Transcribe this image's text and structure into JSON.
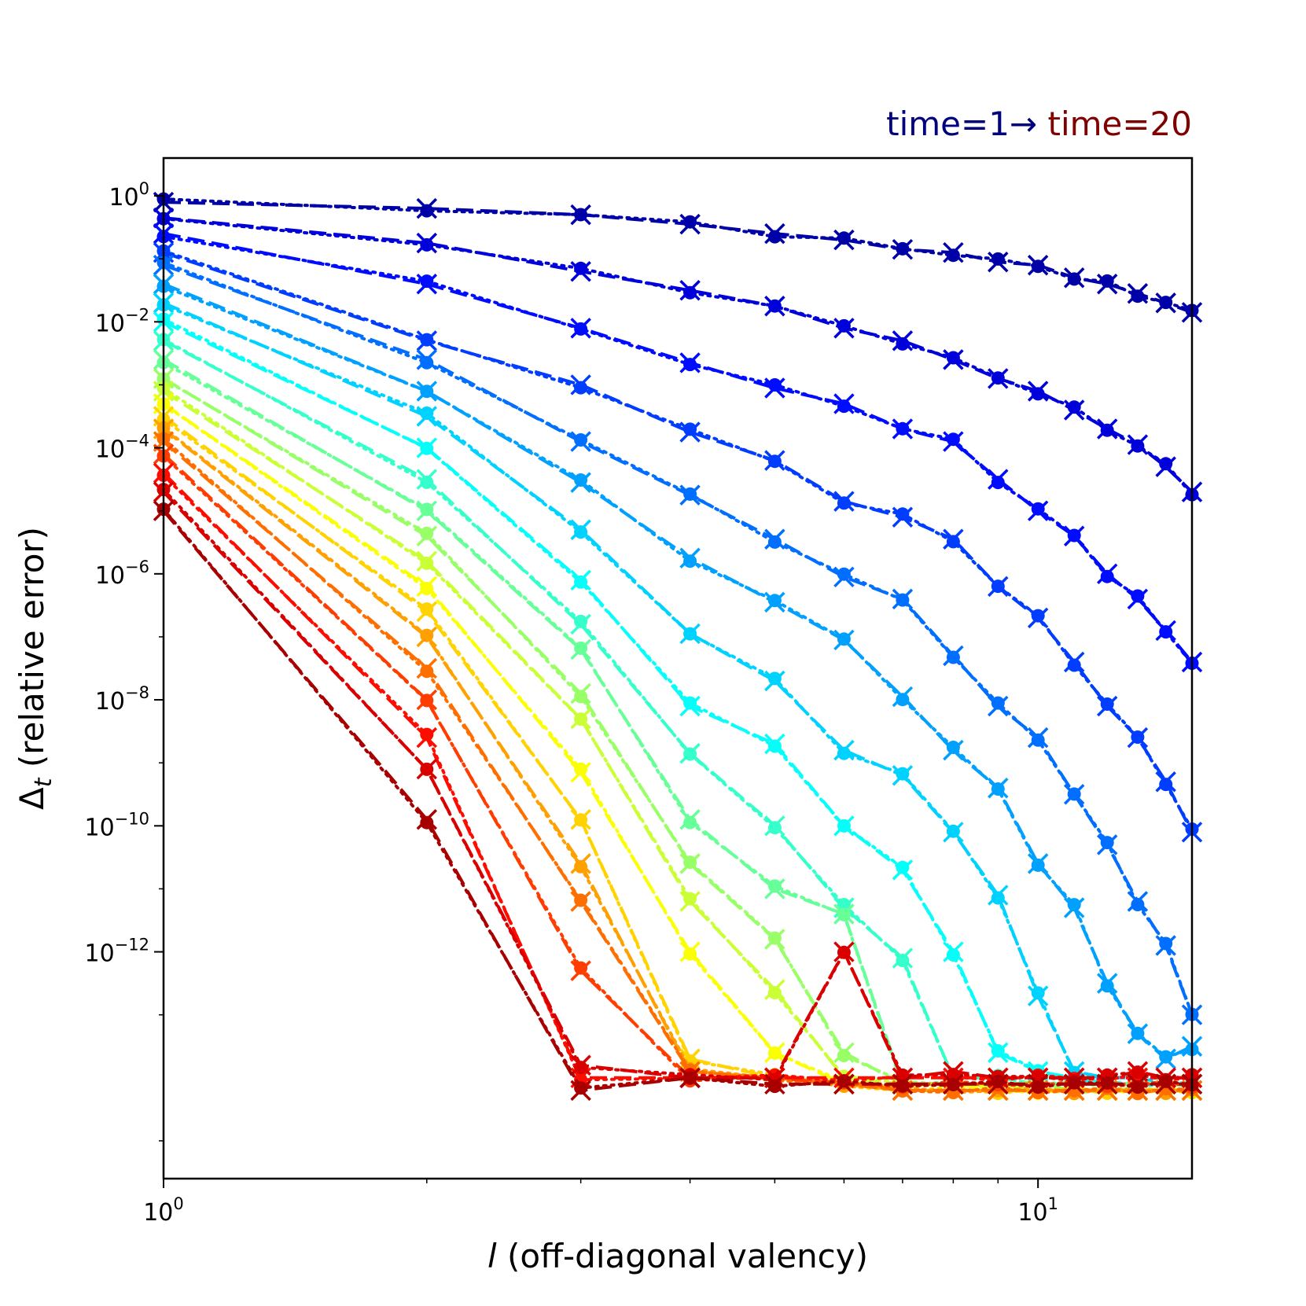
{
  "chart_data": {
    "type": "line",
    "x_scale": "log",
    "y_scale": "log",
    "x": [
      1,
      2,
      3,
      4,
      5,
      6,
      7,
      8,
      9,
      10,
      11,
      12,
      13,
      14,
      15
    ],
    "xlim": [
      1,
      15
    ],
    "ylim_exponent": [
      -15.6,
      0.6
    ],
    "xlabel_var": "l",
    "xlabel_rest": " (off-diagonal valency)",
    "ylabel_var": "Δ",
    "ylabel_sub": "t",
    "ylabel_rest": " (relative error)",
    "x_ticks": [
      {
        "value": 1,
        "base": "10",
        "exp": "0"
      },
      {
        "value": 10,
        "base": "10",
        "exp": "1"
      }
    ],
    "y_ticks": [
      {
        "exponent": 0,
        "base": "10",
        "exp": "0"
      },
      {
        "exponent": -2,
        "base": "10",
        "exp": "−2"
      },
      {
        "exponent": -4,
        "base": "10",
        "exp": "−4"
      },
      {
        "exponent": -6,
        "base": "10",
        "exp": "−6"
      },
      {
        "exponent": -8,
        "base": "10",
        "exp": "−8"
      },
      {
        "exponent": -10,
        "base": "10",
        "exp": "−10"
      },
      {
        "exponent": -12,
        "base": "10",
        "exp": "−12"
      }
    ],
    "annotation_start": "time=1→",
    "annotation_end": " time=20",
    "annotation_start_color": "#00007f",
    "annotation_end_color": "#7f0000",
    "colormap": "jet",
    "value_encoding": "log10 of relative error",
    "series_styles": [
      "dashed, x markers",
      "dotted, circle markers"
    ],
    "series_log10": [
      {
        "name": "time=1",
        "values": [
          -0.1,
          -0.2,
          -0.3,
          -0.45,
          -0.6,
          -0.7,
          -0.85,
          -0.9,
          -1.05,
          -1.1,
          -1.3,
          -1.4,
          -1.55,
          -1.7,
          -1.85
        ]
      },
      {
        "name": "time=2",
        "values": [
          -0.35,
          -0.75,
          -1.2,
          -1.5,
          -1.75,
          -2.1,
          -2.3,
          -2.6,
          -2.9,
          -3.1,
          -3.4,
          -3.7,
          -3.95,
          -4.3,
          -4.7
        ]
      },
      {
        "name": "time=3",
        "values": [
          -0.6,
          -1.4,
          -2.1,
          -2.65,
          -3.05,
          -3.3,
          -3.7,
          -3.9,
          -4.5,
          -5.0,
          -5.4,
          -6.0,
          -6.4,
          -6.9,
          -7.4
        ]
      },
      {
        "name": "time=4",
        "values": [
          -0.9,
          -2.3,
          -3.0,
          -3.75,
          -4.2,
          -4.85,
          -5.1,
          -5.45,
          -6.2,
          -6.7,
          -7.4,
          -8.1,
          -8.6,
          -9.3,
          -10.1
        ]
      },
      {
        "name": "time=5",
        "values": [
          -1.1,
          -2.6,
          -3.9,
          -4.75,
          -5.45,
          -6.05,
          -6.4,
          -7.3,
          -8.1,
          -8.6,
          -9.5,
          -10.3,
          -11.2,
          -11.9,
          -13.0
        ]
      },
      {
        "name": "time=6",
        "values": [
          -1.4,
          -3.1,
          -4.55,
          -5.75,
          -6.45,
          -7.05,
          -7.95,
          -8.8,
          -9.4,
          -10.6,
          -11.3,
          -12.5,
          -13.3,
          -13.7,
          -13.5
        ]
      },
      {
        "name": "time=7",
        "values": [
          -1.7,
          -3.5,
          -5.3,
          -6.95,
          -7.7,
          -8.8,
          -9.2,
          -10.1,
          -11.1,
          -12.7,
          -13.9,
          -14.0,
          -14.0,
          -14.1,
          -14.1
        ]
      },
      {
        "name": "time=8",
        "values": [
          -2.0,
          -4.0,
          -6.1,
          -8.1,
          -8.7,
          -10.0,
          -10.7,
          -12.0,
          -13.6,
          -13.9,
          -14.0,
          -14.1,
          -14.1,
          -14.1,
          -14.1
        ]
      },
      {
        "name": "time=9",
        "values": [
          -2.3,
          -4.5,
          -6.8,
          -8.85,
          -10.0,
          -11.3,
          -12.1,
          -14.0,
          -14.0,
          -14.1,
          -14.1,
          -14.1,
          -14.1,
          -14.1,
          -14.1
        ]
      },
      {
        "name": "time=10",
        "values": [
          -2.6,
          -5.0,
          -7.2,
          -9.9,
          -11.0,
          -11.4,
          -14.1,
          -14.1,
          -14.1,
          -14.1,
          -14.1,
          -14.1,
          -14.1,
          -14.1,
          -14.1
        ]
      },
      {
        "name": "time=11",
        "values": [
          -2.9,
          -5.4,
          -7.9,
          -10.6,
          -11.8,
          -13.6,
          -14.1,
          -14.1,
          -14.1,
          -14.1,
          -14.2,
          -14.2,
          -14.2,
          -14.2,
          -14.2
        ]
      },
      {
        "name": "time=12",
        "values": [
          -3.1,
          -5.8,
          -8.3,
          -11.2,
          -12.6,
          -14.0,
          -14.1,
          -14.1,
          -14.1,
          -14.2,
          -14.2,
          -14.2,
          -14.2,
          -14.2,
          -14.2
        ]
      },
      {
        "name": "time=13",
        "values": [
          -3.3,
          -6.2,
          -9.15,
          -12.0,
          -13.6,
          -14.1,
          -14.1,
          -14.1,
          -14.2,
          -14.2,
          -14.2,
          -14.2,
          -14.2,
          -14.2,
          -14.2
        ]
      },
      {
        "name": "time=14",
        "values": [
          -3.5,
          -6.6,
          -9.9,
          -13.7,
          -14.0,
          -14.1,
          -14.2,
          -14.2,
          -14.2,
          -14.2,
          -14.2,
          -14.2,
          -14.2,
          -14.2,
          -14.2
        ]
      },
      {
        "name": "time=15",
        "values": [
          -3.7,
          -7.0,
          -10.6,
          -13.9,
          -14.0,
          -14.1,
          -14.2,
          -14.2,
          -14.2,
          -14.2,
          -14.2,
          -14.2,
          -14.2,
          -14.2,
          -14.2
        ]
      },
      {
        "name": "time=16",
        "values": [
          -3.9,
          -7.5,
          -11.2,
          -13.9,
          -14.0,
          -14.1,
          -14.2,
          -14.2,
          -14.2,
          -14.2,
          -14.2,
          -14.2,
          -14.2,
          -14.2,
          -14.2
        ]
      },
      {
        "name": "time=17",
        "values": [
          -4.1,
          -8.0,
          -12.3,
          -14.0,
          -14.0,
          -14.1,
          -14.1,
          -14.1,
          -14.1,
          -14.1,
          -14.1,
          -14.1,
          -14.1,
          -14.1,
          -14.1
        ]
      },
      {
        "name": "time=18",
        "values": [
          -4.4,
          -8.6,
          -14.0,
          -14.0,
          -14.0,
          -14.0,
          -14.0,
          -14.0,
          -14.0,
          -14.0,
          -14.0,
          -14.0,
          -14.0,
          -14.0,
          -14.0
        ]
      },
      {
        "name": "time=19",
        "values": [
          -4.7,
          -9.1,
          -13.8,
          -14.0,
          -14.0,
          -12.0,
          -14.0,
          -13.9,
          -14.0,
          -14.0,
          -14.0,
          -14.0,
          -13.9,
          -14.0,
          -14.0
        ]
      },
      {
        "name": "time=20",
        "values": [
          -5.0,
          -9.9,
          -14.2,
          -14.0,
          -14.1,
          -14.1,
          -14.1,
          -14.1,
          -14.1,
          -14.1,
          -14.1,
          -14.1,
          -14.1,
          -14.1,
          -14.1
        ]
      }
    ]
  }
}
